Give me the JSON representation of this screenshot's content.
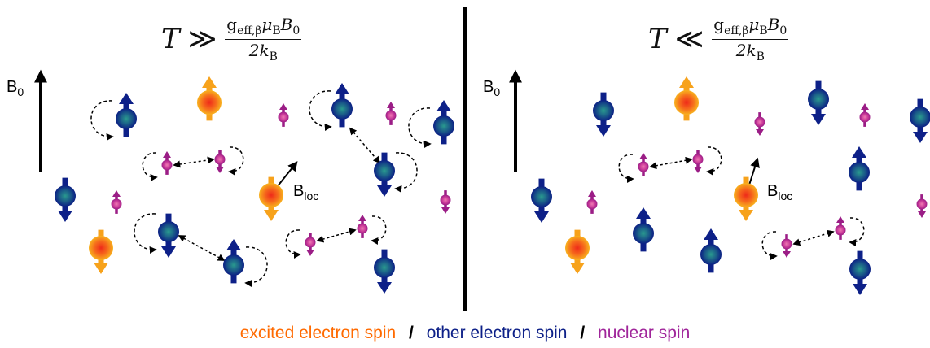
{
  "left_panel": {
    "equation": {
      "lhs": "T",
      "relation": "≫",
      "numerator_main": "g",
      "numerator_sub": "eff,β",
      "numerator_rest": "μ",
      "numerator_sub2": "B",
      "numerator_tail": "B",
      "numerator_sub3": "0",
      "denominator": "2k",
      "denominator_sub": "B"
    },
    "field_label": "B",
    "field_label_sub": "0",
    "local_field_label": "B",
    "local_field_label_sub": "loc"
  },
  "right_panel": {
    "equation": {
      "lhs": "T",
      "relation": "≪",
      "numerator_main": "g",
      "numerator_sub": "eff,β",
      "numerator_rest": "μ",
      "numerator_sub2": "B",
      "numerator_tail": "B",
      "numerator_sub3": "0",
      "denominator": "2k",
      "denominator_sub": "B"
    },
    "field_label": "B",
    "field_label_sub": "0",
    "local_field_label": "B",
    "local_field_label_sub": "loc"
  },
  "legend": {
    "excited": "excited electron spin",
    "other": "other electron spin",
    "nuclear": "nuclear spin",
    "separator": "/"
  },
  "colors": {
    "excited": "#f7a21b",
    "excited_core": "#ee3b1a",
    "excited_text": "#ff6a00",
    "other": "#0d2088",
    "other_core": "#1f8a86",
    "nuclear": "#9b1d86",
    "nuclear_core": "#e36aa8",
    "nuclear_text": "#a0259a"
  }
}
